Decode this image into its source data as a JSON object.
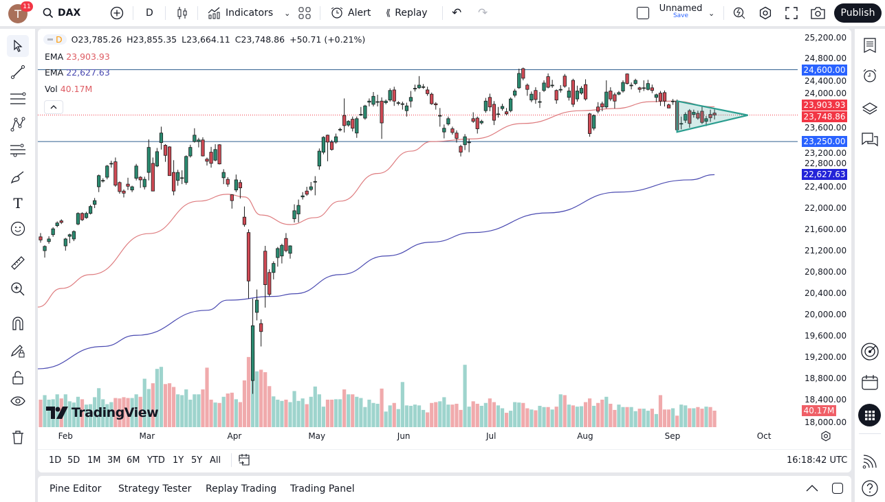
{
  "topbar": {
    "avatar_letter": "T",
    "notifications": "11",
    "symbol": "DAX",
    "interval": "D",
    "indicators": "Indicators",
    "alert": "Alert",
    "replay": "Replay",
    "layout_name": "Unnamed",
    "save": "Save",
    "publish": "Publish"
  },
  "legend": {
    "interval": "D",
    "open": "O23,785.26",
    "high": "H23,855.35",
    "low": "L23,664.11",
    "close": "C23,748.86",
    "change": "+50.71 (+0.21%)",
    "ema1_label": "EMA",
    "ema1_value": "23,903.93",
    "ema2_label": "EMA",
    "ema2_value": "22,627.63",
    "vol_label": "Vol",
    "vol_value": "40.17M"
  },
  "watermark": "TradingView",
  "range_buttons": [
    "1D",
    "5D",
    "1M",
    "3M",
    "6M",
    "YTD",
    "1Y",
    "5Y",
    "All"
  ],
  "clock": "16:18:42 UTC",
  "bottom_tabs": [
    "Pine Editor",
    "Strategy Tester",
    "Replay Trading",
    "Trading Panel"
  ],
  "colors": {
    "up": "#2a8a70",
    "down": "#d04a55",
    "vol_up": "#9ed4cd",
    "vol_down": "#f0aaac",
    "ema_fast": "#de7b7e",
    "ema_slow": "#4848b0",
    "hline": "#2f5f8f",
    "triangle": "#2a9d8f"
  },
  "chart_data": {
    "type": "candlestick",
    "symbol": "DAX",
    "interval": "D",
    "price_scale": "linear",
    "y_ticks": [
      "25,200.00",
      "24,800.00",
      "24,400.00",
      "24,000.00",
      "23,600.00",
      "23,200.00",
      "22,800.00",
      "22,400.00",
      "22,000.00",
      "21,600.00",
      "21,200.00",
      "20,800.00",
      "20,400.00",
      "20,000.00",
      "19,600.00",
      "19,200.00",
      "18,800.00",
      "18,400.00",
      "18,000.00"
    ],
    "x_ticks": [
      {
        "label": "Feb",
        "bar": 6
      },
      {
        "label": "Mar",
        "bar": 25.6
      },
      {
        "label": "Apr",
        "bar": 46.6
      },
      {
        "label": "May",
        "bar": 66.4
      },
      {
        "label": "Jun",
        "bar": 87.3
      },
      {
        "label": "Jul",
        "bar": 108.3
      },
      {
        "label": "Aug",
        "bar": 130.9
      },
      {
        "label": "Sep",
        "bar": 151.9
      },
      {
        "label": "Oct",
        "bar": 173.9
      }
    ],
    "candles_ohlc": [
      [
        21460,
        21530,
        21350,
        21400
      ],
      [
        21200,
        21300,
        21070,
        21280
      ],
      [
        21370,
        21470,
        21330,
        21420
      ],
      [
        21500,
        21640,
        21460,
        21610
      ],
      [
        21670,
        21750,
        21640,
        21720
      ],
      [
        21760,
        21790,
        21700,
        21730
      ],
      [
        21290,
        21440,
        21200,
        21420
      ],
      [
        21470,
        21520,
        21340,
        21500
      ],
      [
        21420,
        21580,
        21380,
        21560
      ],
      [
        21700,
        21920,
        21680,
        21900
      ],
      [
        21900,
        21920,
        21760,
        21780
      ],
      [
        21820,
        21930,
        21800,
        21900
      ],
      [
        21900,
        22060,
        21880,
        22030
      ],
      [
        22070,
        22190,
        22000,
        22140
      ],
      [
        22400,
        22630,
        22300,
        22610
      ],
      [
        22510,
        22560,
        22480,
        22520
      ],
      [
        22580,
        22810,
        22540,
        22790
      ],
      [
        22830,
        22890,
        22760,
        22840
      ],
      [
        22870,
        22950,
        22400,
        22430
      ],
      [
        22480,
        22500,
        22270,
        22310
      ],
      [
        22320,
        22350,
        22200,
        22280
      ],
      [
        22450,
        22570,
        22340,
        22410
      ],
      [
        22340,
        22420,
        22300,
        22400
      ],
      [
        22560,
        22830,
        22520,
        22790
      ],
      [
        22580,
        22600,
        22380,
        22530
      ],
      [
        22400,
        22590,
        22350,
        22540
      ],
      [
        22670,
        23290,
        22520,
        23140
      ],
      [
        22840,
        22950,
        22320,
        22320
      ],
      [
        22790,
        23130,
        22770,
        23060
      ],
      [
        23230,
        23530,
        23100,
        23410
      ],
      [
        23180,
        23200,
        22870,
        22990
      ],
      [
        23150,
        23160,
        22610,
        22610
      ],
      [
        22670,
        22900,
        22240,
        22320
      ],
      [
        22520,
        22720,
        22420,
        22670
      ],
      [
        22570,
        22710,
        22450,
        22570
      ],
      [
        22480,
        22990,
        22440,
        22970
      ],
      [
        22980,
        23190,
        22950,
        23140
      ],
      [
        23250,
        23500,
        23230,
        23370
      ],
      [
        23250,
        23320,
        23140,
        23280
      ],
      [
        23280,
        23330,
        22970,
        22980
      ],
      [
        22920,
        22950,
        22800,
        22880
      ],
      [
        23050,
        23150,
        22760,
        22840
      ],
      [
        22900,
        23200,
        22880,
        23100
      ],
      [
        23190,
        23200,
        22820,
        22830
      ],
      [
        22570,
        22730,
        22450,
        22670
      ],
      [
        22540,
        22580,
        22400,
        22450
      ],
      [
        22250,
        22260,
        21990,
        22140
      ],
      [
        22340,
        22630,
        22300,
        22530
      ],
      [
        22480,
        22530,
        22180,
        22380
      ],
      [
        21830,
        22030,
        21650,
        21690
      ],
      [
        21540,
        21600,
        20300,
        20630
      ],
      [
        18760,
        20300,
        18510,
        19790
      ],
      [
        20040,
        20470,
        19890,
        20270
      ],
      [
        19830,
        19910,
        19400,
        19680
      ],
      [
        21190,
        21290,
        20130,
        20560
      ],
      [
        20790,
        20850,
        20340,
        20380
      ],
      [
        20790,
        21000,
        20660,
        20960
      ],
      [
        21070,
        21270,
        20900,
        21240
      ],
      [
        21100,
        21330,
        20960,
        21300
      ],
      [
        21430,
        21530,
        21170,
        21200
      ],
      [
        21150,
        21300,
        21050,
        21290
      ],
      [
        21800,
        22070,
        21730,
        21950
      ],
      [
        21890,
        22160,
        21730,
        22050
      ],
      [
        22210,
        22300,
        22160,
        22230
      ],
      [
        22320,
        22400,
        22230,
        22260
      ],
      [
        22350,
        22490,
        22320,
        22400
      ],
      [
        22490,
        22600,
        22240,
        22500
      ],
      [
        22790,
        23120,
        22720,
        23070
      ],
      [
        23050,
        23350,
        23010,
        23330
      ],
      [
        23370,
        23380,
        22880,
        23240
      ],
      [
        23240,
        23280,
        23080,
        23100
      ],
      [
        23240,
        23400,
        23210,
        23340
      ],
      [
        23470,
        23510,
        23440,
        23480
      ],
      [
        23740,
        24060,
        23420,
        23550
      ],
      [
        23560,
        23650,
        23530,
        23630
      ],
      [
        23670,
        23720,
        23440,
        23500
      ],
      [
        23410,
        23720,
        23320,
        23680
      ],
      [
        23750,
        23900,
        23730,
        23760
      ],
      [
        23690,
        23940,
        23660,
        23920
      ],
      [
        23990,
        24060,
        23910,
        24010
      ],
      [
        23950,
        24180,
        23910,
        24100
      ],
      [
        23990,
        24130,
        23910,
        24000
      ],
      [
        24010,
        24080,
        23300,
        23600
      ],
      [
        23980,
        24040,
        23950,
        24010
      ],
      [
        24030,
        24250,
        24000,
        24210
      ],
      [
        24220,
        24280,
        23920,
        24010
      ],
      [
        23970,
        24010,
        23930,
        23980
      ],
      [
        23950,
        24000,
        23850,
        23960
      ],
      [
        23830,
        23980,
        23720,
        23920
      ],
      [
        24010,
        24200,
        23890,
        24080
      ],
      [
        24240,
        24320,
        24190,
        24250
      ],
      [
        24260,
        24480,
        24240,
        24310
      ],
      [
        24270,
        24330,
        24240,
        24280
      ],
      [
        24220,
        24280,
        24110,
        24150
      ],
      [
        24140,
        24170,
        23940,
        23960
      ],
      [
        23960,
        23990,
        23850,
        23940
      ],
      [
        23740,
        23880,
        23530,
        23740
      ],
      [
        23430,
        23570,
        23310,
        23500
      ],
      [
        23580,
        23720,
        23550,
        23680
      ],
      [
        23490,
        23530,
        23380,
        23420
      ],
      [
        23410,
        23460,
        23230,
        23310
      ],
      [
        23160,
        23190,
        22970,
        23050
      ],
      [
        23190,
        23390,
        23090,
        23340
      ],
      [
        23230,
        23300,
        23050,
        23240
      ],
      [
        23680,
        23800,
        23600,
        23630
      ],
      [
        23690,
        23720,
        23400,
        23490
      ],
      [
        23600,
        23660,
        23570,
        23630
      ],
      [
        23830,
        24070,
        23790,
        24010
      ],
      [
        24080,
        24150,
        23820,
        23900
      ],
      [
        23950,
        24010,
        23560,
        23650
      ],
      [
        23760,
        23900,
        23700,
        23770
      ],
      [
        23870,
        23960,
        23830,
        23910
      ],
      [
        23810,
        23880,
        23740,
        23770
      ],
      [
        23830,
        24080,
        23800,
        24050
      ],
      [
        24120,
        24240,
        24080,
        24200
      ],
      [
        24260,
        24620,
        24240,
        24530
      ],
      [
        24620,
        24640,
        24400,
        24440
      ],
      [
        24310,
        24340,
        24110,
        24230
      ],
      [
        24030,
        24190,
        23990,
        24140
      ],
      [
        24210,
        24270,
        23960,
        24040
      ],
      [
        23990,
        24180,
        23880,
        24000
      ],
      [
        24210,
        24400,
        24180,
        24350
      ],
      [
        24470,
        24530,
        24250,
        24270
      ],
      [
        24300,
        24410,
        24260,
        24310
      ],
      [
        24210,
        24230,
        23960,
        24030
      ],
      [
        24220,
        24310,
        24170,
        24230
      ],
      [
        24480,
        24520,
        24260,
        24290
      ],
      [
        24080,
        24270,
        24020,
        24200
      ],
      [
        24400,
        24430,
        23900,
        23950
      ],
      [
        24050,
        24300,
        24000,
        24200
      ],
      [
        24160,
        24290,
        24130,
        24250
      ],
      [
        24320,
        24420,
        24020,
        24050
      ],
      [
        23770,
        23790,
        23340,
        23400
      ],
      [
        23500,
        23760,
        23460,
        23740
      ],
      [
        23900,
        23990,
        23780,
        23820
      ],
      [
        23960,
        24000,
        23820,
        23900
      ],
      [
        23900,
        24400,
        23870,
        24180
      ],
      [
        24200,
        24270,
        24010,
        24050
      ],
      [
        24130,
        24170,
        23870,
        24010
      ],
      [
        24140,
        24200,
        24120,
        24170
      ],
      [
        24200,
        24400,
        24170,
        24360
      ],
      [
        24520,
        24530,
        24320,
        24340
      ],
      [
        24300,
        24360,
        24230,
        24310
      ],
      [
        24340,
        24430,
        24310,
        24400
      ],
      [
        24260,
        24280,
        24170,
        24230
      ],
      [
        24250,
        24400,
        24200,
        24260
      ],
      [
        24230,
        24410,
        24210,
        24340
      ],
      [
        24260,
        24320,
        24160,
        24210
      ],
      [
        24080,
        24150,
        23990,
        24130
      ],
      [
        24160,
        24200,
        23920,
        24010
      ],
      [
        24170,
        24210,
        23910,
        24010
      ],
      [
        23940,
        23960,
        23880,
        23880
      ],
      [
        24000,
        24050,
        23940,
        24010
      ],
      [
        24010,
        24040,
        23440,
        23470
      ],
      [
        23580,
        23720,
        23480,
        23590
      ],
      [
        23650,
        23800,
        23600,
        23760
      ],
      [
        23830,
        23860,
        23510,
        23590
      ],
      [
        23760,
        23850,
        23700,
        23800
      ],
      [
        23780,
        23830,
        23660,
        23690
      ],
      [
        23820,
        23930,
        23580,
        23610
      ],
      [
        23630,
        23730,
        23540,
        23680
      ],
      [
        23760,
        23850,
        23620,
        23698.15
      ],
      [
        23785.26,
        23855.35,
        23664.11,
        23748.86
      ]
    ],
    "volume_millions": [
      67,
      78,
      67,
      68,
      80,
      70,
      80,
      63,
      60,
      74,
      68,
      55,
      56,
      73,
      95,
      68,
      56,
      61,
      71,
      70,
      73,
      71,
      71,
      80,
      74,
      118,
      93,
      107,
      142,
      147,
      105,
      107,
      98,
      80,
      78,
      92,
      67,
      80,
      80,
      92,
      145,
      67,
      60,
      59,
      74,
      82,
      84,
      68,
      61,
      114,
      171,
      185,
      136,
      140,
      134,
      100,
      75,
      67,
      64,
      67,
      61,
      88,
      64,
      70,
      56,
      74,
      99,
      80,
      50,
      67,
      67,
      68,
      68,
      92,
      80,
      80,
      74,
      71,
      49,
      67,
      59,
      57,
      94,
      38,
      53,
      59,
      44,
      110,
      53,
      52,
      55,
      53,
      42,
      36,
      59,
      61,
      63,
      73,
      55,
      55,
      57,
      42,
      152,
      50,
      63,
      57,
      52,
      59,
      70,
      61,
      53,
      46,
      35,
      40,
      61,
      60,
      59,
      46,
      43,
      41,
      52,
      49,
      49,
      43,
      50,
      80,
      78,
      55,
      53,
      50,
      51,
      61,
      70,
      52,
      59,
      67,
      74,
      57,
      42,
      55,
      49,
      49,
      49,
      39,
      45,
      45,
      40,
      45,
      32,
      78,
      43,
      43,
      46,
      28,
      55,
      53,
      46,
      46,
      49,
      45,
      50,
      49,
      40.17
    ],
    "ema_fast": {
      "label": "EMA",
      "last": "23,903.93",
      "points": [
        [
          -1,
          20140
        ],
        [
          5,
          20490
        ],
        [
          12,
          20750
        ],
        [
          26,
          21520
        ],
        [
          38,
          22130
        ],
        [
          45,
          22260
        ],
        [
          49,
          22210
        ],
        [
          53,
          21870
        ],
        [
          60,
          21690
        ],
        [
          66,
          21820
        ],
        [
          72,
          22130
        ],
        [
          81,
          22650
        ],
        [
          89,
          23070
        ],
        [
          94,
          23250
        ],
        [
          104,
          23300
        ],
        [
          116,
          23590
        ],
        [
          130,
          23830
        ],
        [
          138,
          23870
        ],
        [
          147,
          24000
        ],
        [
          152,
          24010
        ],
        [
          162,
          23903.93
        ]
      ]
    },
    "ema_slow": {
      "label": "EMA",
      "last": "22,627.63",
      "points": [
        [
          -1,
          18980
        ],
        [
          15,
          19400
        ],
        [
          23,
          19610
        ],
        [
          40,
          20080
        ],
        [
          45,
          20270
        ],
        [
          56,
          20340
        ],
        [
          61,
          20390
        ],
        [
          72,
          20750
        ],
        [
          83,
          21100
        ],
        [
          94,
          21360
        ],
        [
          104,
          21540
        ],
        [
          122,
          21910
        ],
        [
          139,
          22300
        ],
        [
          156,
          22530
        ],
        [
          162,
          22627.63
        ]
      ]
    },
    "horizontal_lines": [
      24600,
      23250
    ],
    "triangle": [
      [
        153,
        24010
      ],
      [
        170,
        23745
      ],
      [
        153,
        23430
      ]
    ],
    "last_price": 23748.86,
    "price_badges": [
      {
        "label": "24,600.00",
        "value": 24600,
        "color": "#2962ff"
      },
      {
        "label": "23,903.93",
        "value": 23903.93,
        "color": "#f23645"
      },
      {
        "label": "23,748.86",
        "value": 23748.86,
        "color": "#f23645"
      },
      {
        "label": "23,250.00",
        "value": 23250,
        "color": "#2962ff"
      },
      {
        "label": "22,627.63",
        "value": 22627.63,
        "color": "#2323d8"
      }
    ],
    "volume_badge": {
      "label": "40.17M",
      "value": 40.17,
      "color": "#ef5f67"
    }
  }
}
